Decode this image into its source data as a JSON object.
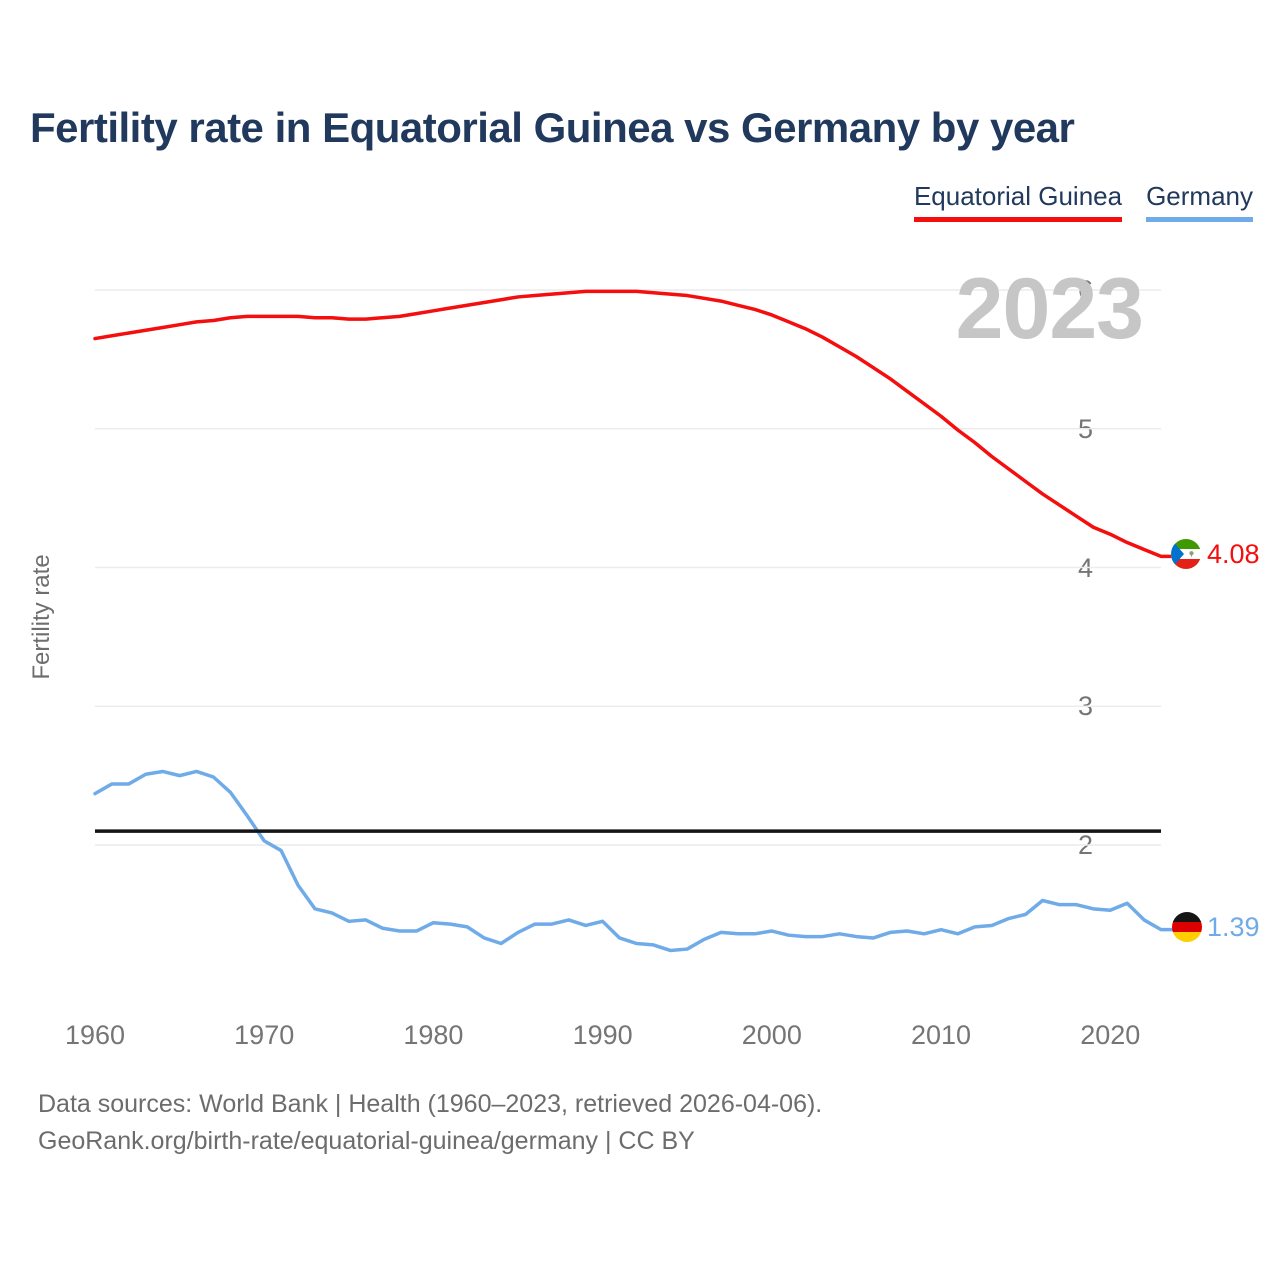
{
  "page": {
    "caption_line1": "Data sources: World Bank | Health (1960–2023, retrieved 2026-04-06).",
    "caption_line2": "GeoRank.org/birth-rate/equatorial-guinea/germany | CC BY"
  },
  "legend": [
    {
      "label": "Equatorial Guinea",
      "color": "#f40e0e"
    },
    {
      "label": "Germany",
      "color": "#6fabe8"
    }
  ],
  "chart_data": {
    "type": "line",
    "title": "Fertility rate in Equatorial Guinea vs Germany by year",
    "watermark": "2023",
    "xlabel": "",
    "ylabel": "Fertility rate",
    "grid": "horizontal",
    "legend_position": "top-right",
    "y_ticks": [
      2,
      3,
      4,
      5,
      6
    ],
    "x_ticks": [
      1960,
      1970,
      1980,
      1990,
      2000,
      2010,
      2020
    ],
    "ylim": [
      1.15,
      6.1
    ],
    "xlim": [
      1960,
      2023
    ],
    "reference_line": {
      "value": 2.1,
      "color": "#141414",
      "meaning": "replacement level"
    },
    "years": [
      1960,
      1961,
      1962,
      1963,
      1964,
      1965,
      1966,
      1967,
      1968,
      1969,
      1970,
      1971,
      1972,
      1973,
      1974,
      1975,
      1976,
      1977,
      1978,
      1979,
      1980,
      1981,
      1982,
      1983,
      1984,
      1985,
      1986,
      1987,
      1988,
      1989,
      1990,
      1991,
      1992,
      1993,
      1994,
      1995,
      1996,
      1997,
      1998,
      1999,
      2000,
      2001,
      2002,
      2003,
      2004,
      2005,
      2006,
      2007,
      2008,
      2009,
      2010,
      2011,
      2012,
      2013,
      2014,
      2015,
      2016,
      2017,
      2018,
      2019,
      2020,
      2021,
      2022,
      2023
    ],
    "series": [
      {
        "name": "Equatorial Guinea",
        "color": "#f40e0e",
        "end_label": "4.08",
        "end_value": 4.08,
        "values": [
          5.65,
          5.67,
          5.69,
          5.71,
          5.73,
          5.75,
          5.77,
          5.78,
          5.8,
          5.81,
          5.81,
          5.81,
          5.81,
          5.8,
          5.8,
          5.79,
          5.79,
          5.8,
          5.81,
          5.83,
          5.85,
          5.87,
          5.89,
          5.91,
          5.93,
          5.95,
          5.96,
          5.97,
          5.98,
          5.99,
          5.99,
          5.99,
          5.99,
          5.98,
          5.97,
          5.96,
          5.94,
          5.92,
          5.89,
          5.86,
          5.82,
          5.77,
          5.72,
          5.66,
          5.59,
          5.52,
          5.44,
          5.36,
          5.27,
          5.18,
          5.09,
          4.99,
          4.9,
          4.8,
          4.71,
          4.62,
          4.53,
          4.45,
          4.37,
          4.29,
          4.24,
          4.18,
          4.13,
          4.08
        ]
      },
      {
        "name": "Germany",
        "color": "#6fabe8",
        "end_label": "1.39",
        "end_value": 1.39,
        "values": [
          2.37,
          2.44,
          2.44,
          2.51,
          2.53,
          2.5,
          2.53,
          2.49,
          2.38,
          2.21,
          2.03,
          1.96,
          1.71,
          1.54,
          1.51,
          1.45,
          1.46,
          1.4,
          1.38,
          1.38,
          1.44,
          1.43,
          1.41,
          1.33,
          1.29,
          1.37,
          1.43,
          1.43,
          1.46,
          1.42,
          1.45,
          1.33,
          1.29,
          1.28,
          1.24,
          1.25,
          1.32,
          1.37,
          1.36,
          1.36,
          1.38,
          1.35,
          1.34,
          1.34,
          1.36,
          1.34,
          1.33,
          1.37,
          1.38,
          1.36,
          1.39,
          1.36,
          1.41,
          1.42,
          1.47,
          1.5,
          1.6,
          1.57,
          1.57,
          1.54,
          1.53,
          1.58,
          1.46,
          1.39
        ]
      }
    ]
  }
}
